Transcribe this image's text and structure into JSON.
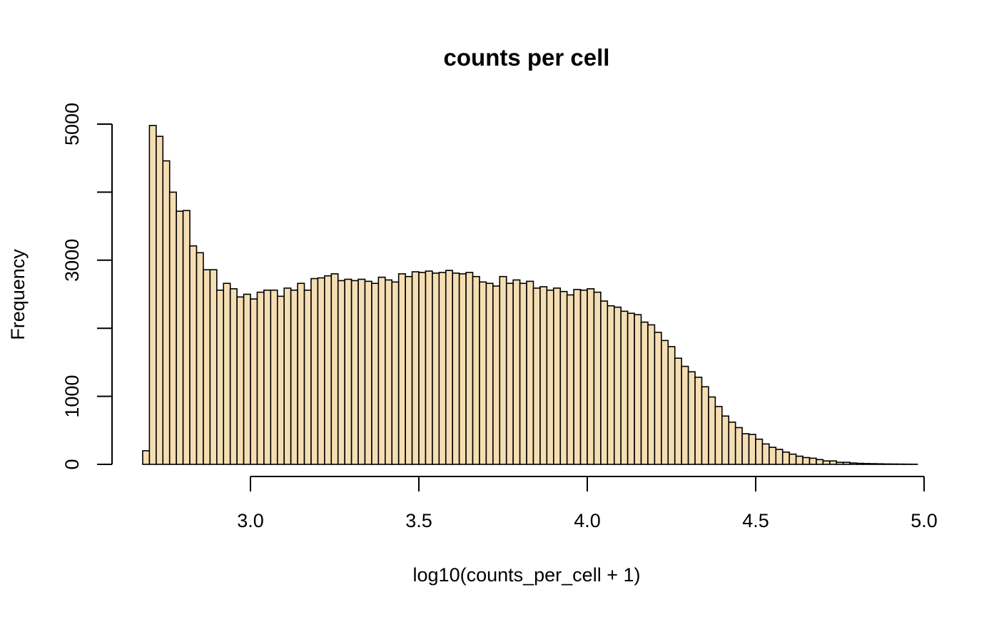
{
  "chart_data": {
    "type": "bar",
    "title": "counts per cell",
    "xlabel": "log10(counts_per_cell + 1)",
    "ylabel": "Frequency",
    "bar_color": "#F5DEB3",
    "edge_color": "#000000",
    "grid": false,
    "xlim": [
      2.68,
      4.98
    ],
    "ylim": [
      0,
      5000
    ],
    "x_ticks": [
      3.0,
      3.5,
      4.0,
      4.5,
      5.0
    ],
    "x_tick_labels": [
      "3.0",
      "3.5",
      "4.0",
      "4.5",
      "5.0"
    ],
    "y_ticks": [
      0,
      1000,
      2000,
      3000,
      4000,
      5000
    ],
    "y_tick_labels": [
      "0",
      "1000",
      "",
      "3000",
      "",
      "5000"
    ],
    "bin_start": 2.68,
    "bin_width": 0.02,
    "values": [
      200,
      4980,
      4820,
      4460,
      4000,
      3720,
      3730,
      3210,
      3110,
      2860,
      2860,
      2560,
      2660,
      2580,
      2460,
      2500,
      2430,
      2530,
      2560,
      2560,
      2470,
      2590,
      2560,
      2660,
      2560,
      2730,
      2740,
      2770,
      2800,
      2700,
      2720,
      2700,
      2720,
      2690,
      2660,
      2750,
      2710,
      2680,
      2800,
      2760,
      2830,
      2820,
      2840,
      2810,
      2820,
      2850,
      2810,
      2800,
      2820,
      2760,
      2680,
      2660,
      2620,
      2760,
      2660,
      2710,
      2660,
      2690,
      2590,
      2610,
      2560,
      2590,
      2540,
      2490,
      2570,
      2560,
      2580,
      2530,
      2400,
      2330,
      2310,
      2250,
      2220,
      2200,
      2090,
      2050,
      1940,
      1820,
      1730,
      1560,
      1440,
      1360,
      1280,
      1140,
      990,
      850,
      710,
      620,
      540,
      450,
      440,
      370,
      300,
      250,
      220,
      180,
      150,
      120,
      100,
      90,
      70,
      50,
      50,
      30,
      30,
      20,
      15,
      12,
      10,
      8,
      6,
      5,
      4,
      3,
      2
    ]
  }
}
